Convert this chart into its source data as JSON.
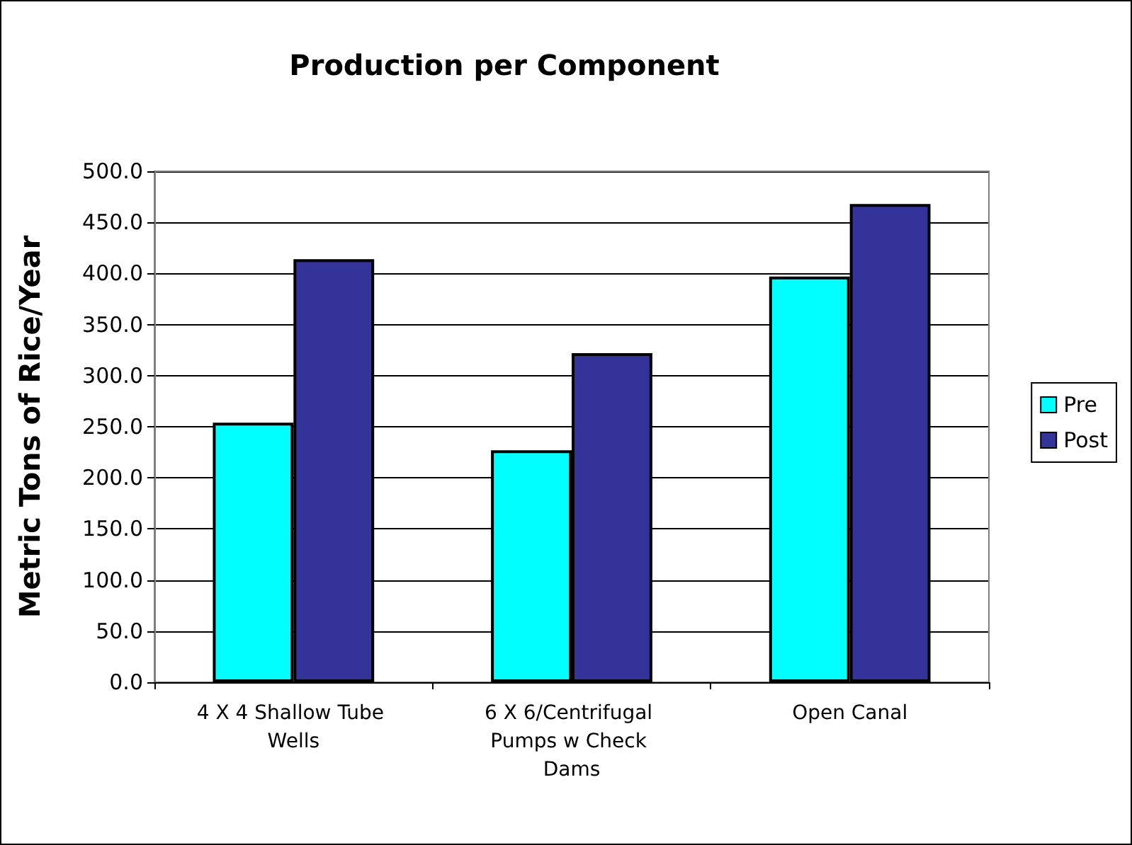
{
  "chart_data": {
    "type": "bar",
    "title": "Production per Component",
    "ylabel": "Metric Tons of Rice/Year",
    "categories": [
      "4 X 4 Shallow Tube Wells",
      "6 X 6/Centrifugal Pumps w Check Dams",
      "Open Canal"
    ],
    "series": [
      {
        "name": "Pre",
        "color": "#00ffff",
        "values": [
          254,
          227,
          397
        ]
      },
      {
        "name": "Post",
        "color": "#333399",
        "values": [
          414,
          322,
          468
        ]
      }
    ],
    "ylim": [
      0,
      500
    ],
    "yticks": [
      {
        "value": 0,
        "label": "0.0"
      },
      {
        "value": 50,
        "label": "50.0"
      },
      {
        "value": 100,
        "label": "100.0"
      },
      {
        "value": 150,
        "label": "150.0"
      },
      {
        "value": 200,
        "label": "200.0"
      },
      {
        "value": 250,
        "label": "250.0"
      },
      {
        "value": 300,
        "label": "300.0"
      },
      {
        "value": 350,
        "label": "350.0"
      },
      {
        "value": 400,
        "label": "400.0"
      },
      {
        "value": 450,
        "label": "450.0"
      },
      {
        "value": 500,
        "label": "500.0"
      }
    ],
    "grid": "y",
    "legend": "right"
  }
}
